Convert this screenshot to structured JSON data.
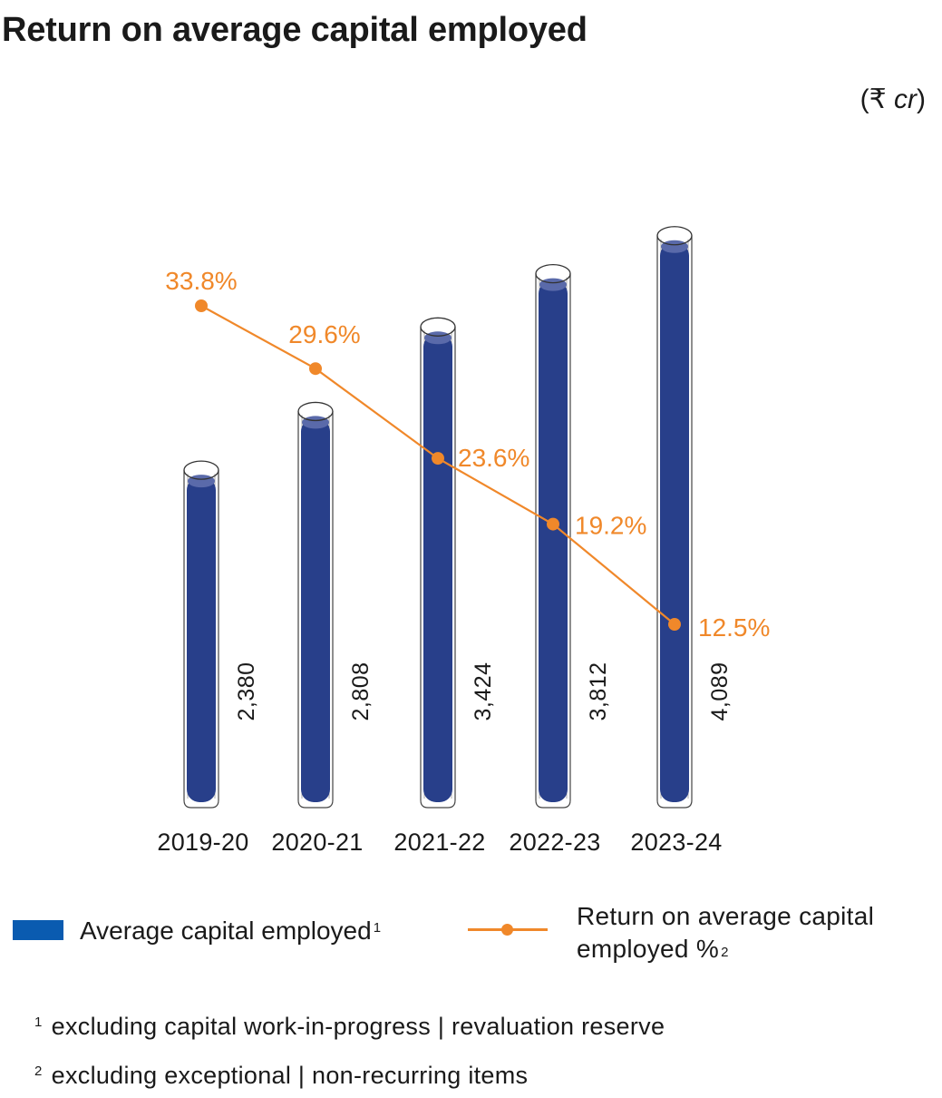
{
  "title": "Return on average capital employed",
  "unit": {
    "symbol": "(₹ ",
    "italic": "cr",
    "close": ")"
  },
  "chart_data": {
    "type": "bar",
    "categories": [
      "2019-20",
      "2020-21",
      "2021-22",
      "2022-23",
      "2023-24"
    ],
    "series": [
      {
        "name": "Average capital employed",
        "kind": "bar",
        "values": [
          2380,
          2808,
          3424,
          3812,
          4089
        ],
        "labels": [
          "2,380",
          "2,808",
          "3,424",
          "3,812",
          "4,089"
        ],
        "color": "#283f8a"
      },
      {
        "name": "Return on average capital employed %",
        "kind": "line",
        "values": [
          33.8,
          29.6,
          23.6,
          19.2,
          12.5
        ],
        "labels": [
          "33.8%",
          "29.6%",
          "23.6%",
          "19.2%",
          "12.5%"
        ],
        "color": "#f0882a"
      }
    ]
  },
  "legend": {
    "bar_label": "Average capital employed",
    "bar_sup": "1",
    "bar_color": "#0a5bb0",
    "line_label_1": "Return on average capital",
    "line_label_2": "employed %",
    "line_sup": "2",
    "line_color": "#f0882a"
  },
  "footnotes": [
    {
      "marker": "1",
      "text": "excluding capital work-in-progress | revaluation reserve"
    },
    {
      "marker": "2",
      "text": "excluding exceptional | non-recurring items"
    }
  ]
}
